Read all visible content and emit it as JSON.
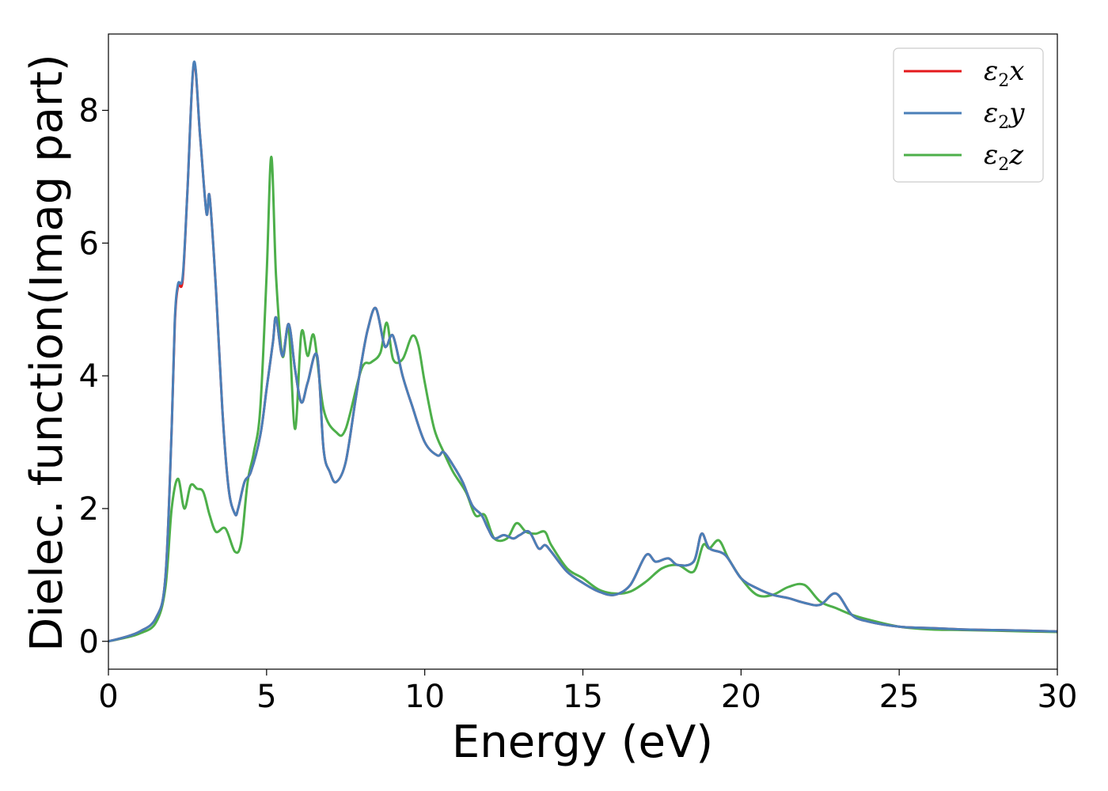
{
  "chart_data": {
    "type": "line",
    "xlabel": "Energy (eV)",
    "ylabel": "Dielec. function(Imag part)",
    "xlim": [
      0,
      30
    ],
    "ylim": [
      -0.42,
      9.15
    ],
    "x_ticks": [
      0,
      5,
      10,
      15,
      20,
      25,
      30
    ],
    "y_ticks": [
      0,
      2,
      4,
      6,
      8
    ],
    "grid": false,
    "legend_position": "top-right",
    "series": [
      {
        "name": "ε2x",
        "legend": {
          "main": "ε",
          "sub": "2",
          "tail": "x"
        },
        "color": "#e41a1c",
        "x": [
          0,
          0.5,
          1,
          1.5,
          1.8,
          2,
          2.1,
          2.2,
          2.35,
          2.5,
          2.7,
          2.9,
          3.1,
          3.2,
          3.4,
          3.6,
          3.8,
          4,
          4.1,
          4.3,
          4.5,
          4.8,
          5,
          5.2,
          5.3,
          5.5,
          5.7,
          5.9,
          6.1,
          6.3,
          6.6,
          6.8,
          7,
          7.2,
          7.5,
          7.8,
          8,
          8.2,
          8.45,
          8.7,
          8.8,
          9,
          9.3,
          9.6,
          10,
          10.4,
          10.6,
          10.9,
          11.2,
          11.5,
          11.8,
          12,
          12.2,
          12.5,
          12.8,
          13,
          13.3,
          13.6,
          13.8,
          14,
          14.5,
          15,
          15.5,
          16,
          16.5,
          17,
          17.3,
          17.7,
          18,
          18.5,
          18.75,
          19,
          19.5,
          20,
          20.5,
          21,
          21.5,
          22,
          22.5,
          23,
          23.5,
          24,
          25,
          26,
          27,
          28,
          29,
          30
        ],
        "y": [
          0,
          0.06,
          0.15,
          0.35,
          0.95,
          3.2,
          4.8,
          5.35,
          5.45,
          6.8,
          8.7,
          7.6,
          6.45,
          6.7,
          5.3,
          3.5,
          2.3,
          1.92,
          2.0,
          2.4,
          2.55,
          3.1,
          3.8,
          4.5,
          4.88,
          4.3,
          4.78,
          4.1,
          3.6,
          3.9,
          4.3,
          2.9,
          2.55,
          2.4,
          2.7,
          3.6,
          4.2,
          4.7,
          5.02,
          4.5,
          4.45,
          4.6,
          4.0,
          3.55,
          3.0,
          2.8,
          2.85,
          2.65,
          2.4,
          2.05,
          1.9,
          1.7,
          1.55,
          1.6,
          1.55,
          1.6,
          1.65,
          1.4,
          1.45,
          1.35,
          1.05,
          0.88,
          0.75,
          0.7,
          0.85,
          1.3,
          1.2,
          1.25,
          1.15,
          1.2,
          1.62,
          1.4,
          1.3,
          0.95,
          0.8,
          0.7,
          0.65,
          0.58,
          0.55,
          0.72,
          0.4,
          0.3,
          0.22,
          0.2,
          0.18,
          0.17,
          0.16,
          0.15
        ]
      },
      {
        "name": "ε2y",
        "legend": {
          "main": "ε",
          "sub": "2",
          "tail": "y"
        },
        "color": "#4a7fb8",
        "x": [
          0,
          0.5,
          1,
          1.5,
          1.8,
          2,
          2.1,
          2.2,
          2.35,
          2.5,
          2.7,
          2.9,
          3.1,
          3.2,
          3.4,
          3.6,
          3.8,
          4,
          4.1,
          4.3,
          4.5,
          4.8,
          5,
          5.2,
          5.3,
          5.5,
          5.7,
          5.9,
          6.1,
          6.3,
          6.6,
          6.8,
          7,
          7.2,
          7.5,
          7.8,
          8,
          8.2,
          8.45,
          8.7,
          8.8,
          9,
          9.3,
          9.6,
          10,
          10.4,
          10.6,
          10.9,
          11.2,
          11.5,
          11.8,
          12,
          12.2,
          12.5,
          12.8,
          13,
          13.3,
          13.6,
          13.8,
          14,
          14.5,
          15,
          15.5,
          16,
          16.5,
          17,
          17.3,
          17.7,
          18,
          18.5,
          18.75,
          19,
          19.5,
          20,
          20.5,
          21,
          21.5,
          22,
          22.5,
          23,
          23.5,
          24,
          25,
          26,
          27,
          28,
          29,
          30
        ],
        "y": [
          0,
          0.06,
          0.15,
          0.35,
          0.95,
          3.2,
          4.85,
          5.38,
          5.5,
          6.8,
          8.72,
          7.6,
          6.45,
          6.7,
          5.3,
          3.5,
          2.3,
          1.92,
          2.0,
          2.4,
          2.55,
          3.1,
          3.8,
          4.5,
          4.88,
          4.3,
          4.78,
          4.1,
          3.6,
          3.9,
          4.3,
          2.9,
          2.55,
          2.4,
          2.7,
          3.6,
          4.2,
          4.7,
          5.02,
          4.5,
          4.45,
          4.6,
          4.0,
          3.55,
          3.0,
          2.8,
          2.85,
          2.65,
          2.4,
          2.05,
          1.9,
          1.7,
          1.55,
          1.6,
          1.55,
          1.6,
          1.65,
          1.4,
          1.45,
          1.35,
          1.05,
          0.88,
          0.75,
          0.7,
          0.85,
          1.3,
          1.2,
          1.25,
          1.15,
          1.2,
          1.62,
          1.4,
          1.3,
          0.95,
          0.8,
          0.7,
          0.65,
          0.58,
          0.55,
          0.72,
          0.4,
          0.3,
          0.22,
          0.2,
          0.18,
          0.17,
          0.16,
          0.15
        ]
      },
      {
        "name": "ε2z",
        "legend": {
          "main": "ε",
          "sub": "2",
          "tail": "z"
        },
        "color": "#4daf4a",
        "x": [
          0,
          0.5,
          1,
          1.5,
          1.8,
          2,
          2.2,
          2.4,
          2.6,
          2.8,
          3,
          3.2,
          3.4,
          3.7,
          4,
          4.2,
          4.4,
          4.6,
          4.8,
          5,
          5.15,
          5.3,
          5.5,
          5.7,
          5.9,
          6.1,
          6.3,
          6.5,
          6.8,
          7.2,
          7.5,
          8,
          8.3,
          8.6,
          8.8,
          9,
          9.3,
          9.6,
          9.8,
          10,
          10.3,
          10.6,
          10.9,
          11.3,
          11.6,
          11.9,
          12.2,
          12.6,
          12.9,
          13.2,
          13.5,
          13.8,
          14,
          14.5,
          15,
          15.5,
          16,
          16.5,
          17,
          17.5,
          18,
          18.5,
          18.8,
          19,
          19.3,
          19.6,
          20,
          20.5,
          21,
          21.5,
          22,
          22.5,
          23,
          23.5,
          24,
          25,
          26,
          27,
          28,
          29,
          30
        ],
        "y": [
          0,
          0.05,
          0.12,
          0.28,
          0.8,
          2.0,
          2.45,
          2.0,
          2.35,
          2.3,
          2.25,
          1.9,
          1.65,
          1.7,
          1.35,
          1.5,
          2.4,
          2.85,
          3.5,
          5.5,
          7.3,
          5.5,
          4.3,
          4.7,
          3.2,
          4.65,
          4.3,
          4.6,
          3.5,
          3.15,
          3.2,
          4.1,
          4.2,
          4.35,
          4.8,
          4.25,
          4.25,
          4.6,
          4.45,
          3.9,
          3.2,
          2.85,
          2.55,
          2.25,
          1.9,
          1.9,
          1.55,
          1.55,
          1.78,
          1.65,
          1.62,
          1.65,
          1.45,
          1.1,
          0.95,
          0.78,
          0.72,
          0.75,
          0.9,
          1.1,
          1.15,
          1.05,
          1.45,
          1.4,
          1.52,
          1.25,
          0.95,
          0.7,
          0.7,
          0.82,
          0.85,
          0.6,
          0.5,
          0.4,
          0.33,
          0.22,
          0.18,
          0.17,
          0.16,
          0.15,
          0.14
        ]
      }
    ]
  }
}
